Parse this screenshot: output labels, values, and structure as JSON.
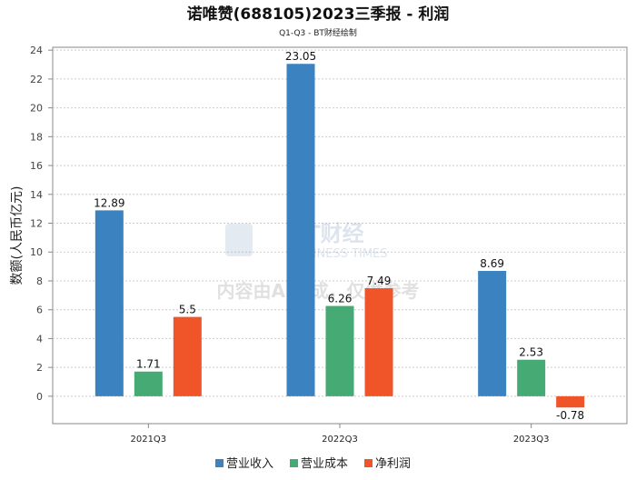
{
  "chart_data": {
    "type": "bar",
    "title": "诺唯赞(688105)2023三季报 - 利润",
    "subtitle": "Q1-Q3 - BT财经绘制",
    "xlabel": "",
    "ylabel": "数额(人民币亿元)",
    "ylim": [
      -1.9,
      24.2
    ],
    "yticks": [
      0,
      2,
      4,
      6,
      8,
      10,
      12,
      14,
      16,
      18,
      20,
      22,
      24
    ],
    "grid": true,
    "legend_position": "bottom",
    "categories": [
      "2021Q3",
      "2022Q3",
      "2023Q3"
    ],
    "series": [
      {
        "name": "营业收入",
        "color": "#3a82c0",
        "values": [
          12.89,
          23.05,
          8.69
        ],
        "labels": [
          "12.89",
          "23.05",
          "8.69"
        ]
      },
      {
        "name": "营业成本",
        "color": "#45aa74",
        "values": [
          1.71,
          6.26,
          2.53
        ],
        "labels": [
          "1.71",
          "6.26",
          "2.53"
        ]
      },
      {
        "name": "净利润",
        "color": "#f0552a",
        "values": [
          5.5,
          7.49,
          -0.78
        ],
        "labels": [
          "5.5",
          "7.49",
          "-0.78"
        ]
      }
    ]
  },
  "watermark": {
    "brand": "BT财经",
    "brand_en": "BUSINESS TIMES",
    "notice": "内容由AI生成，仅供参考"
  }
}
